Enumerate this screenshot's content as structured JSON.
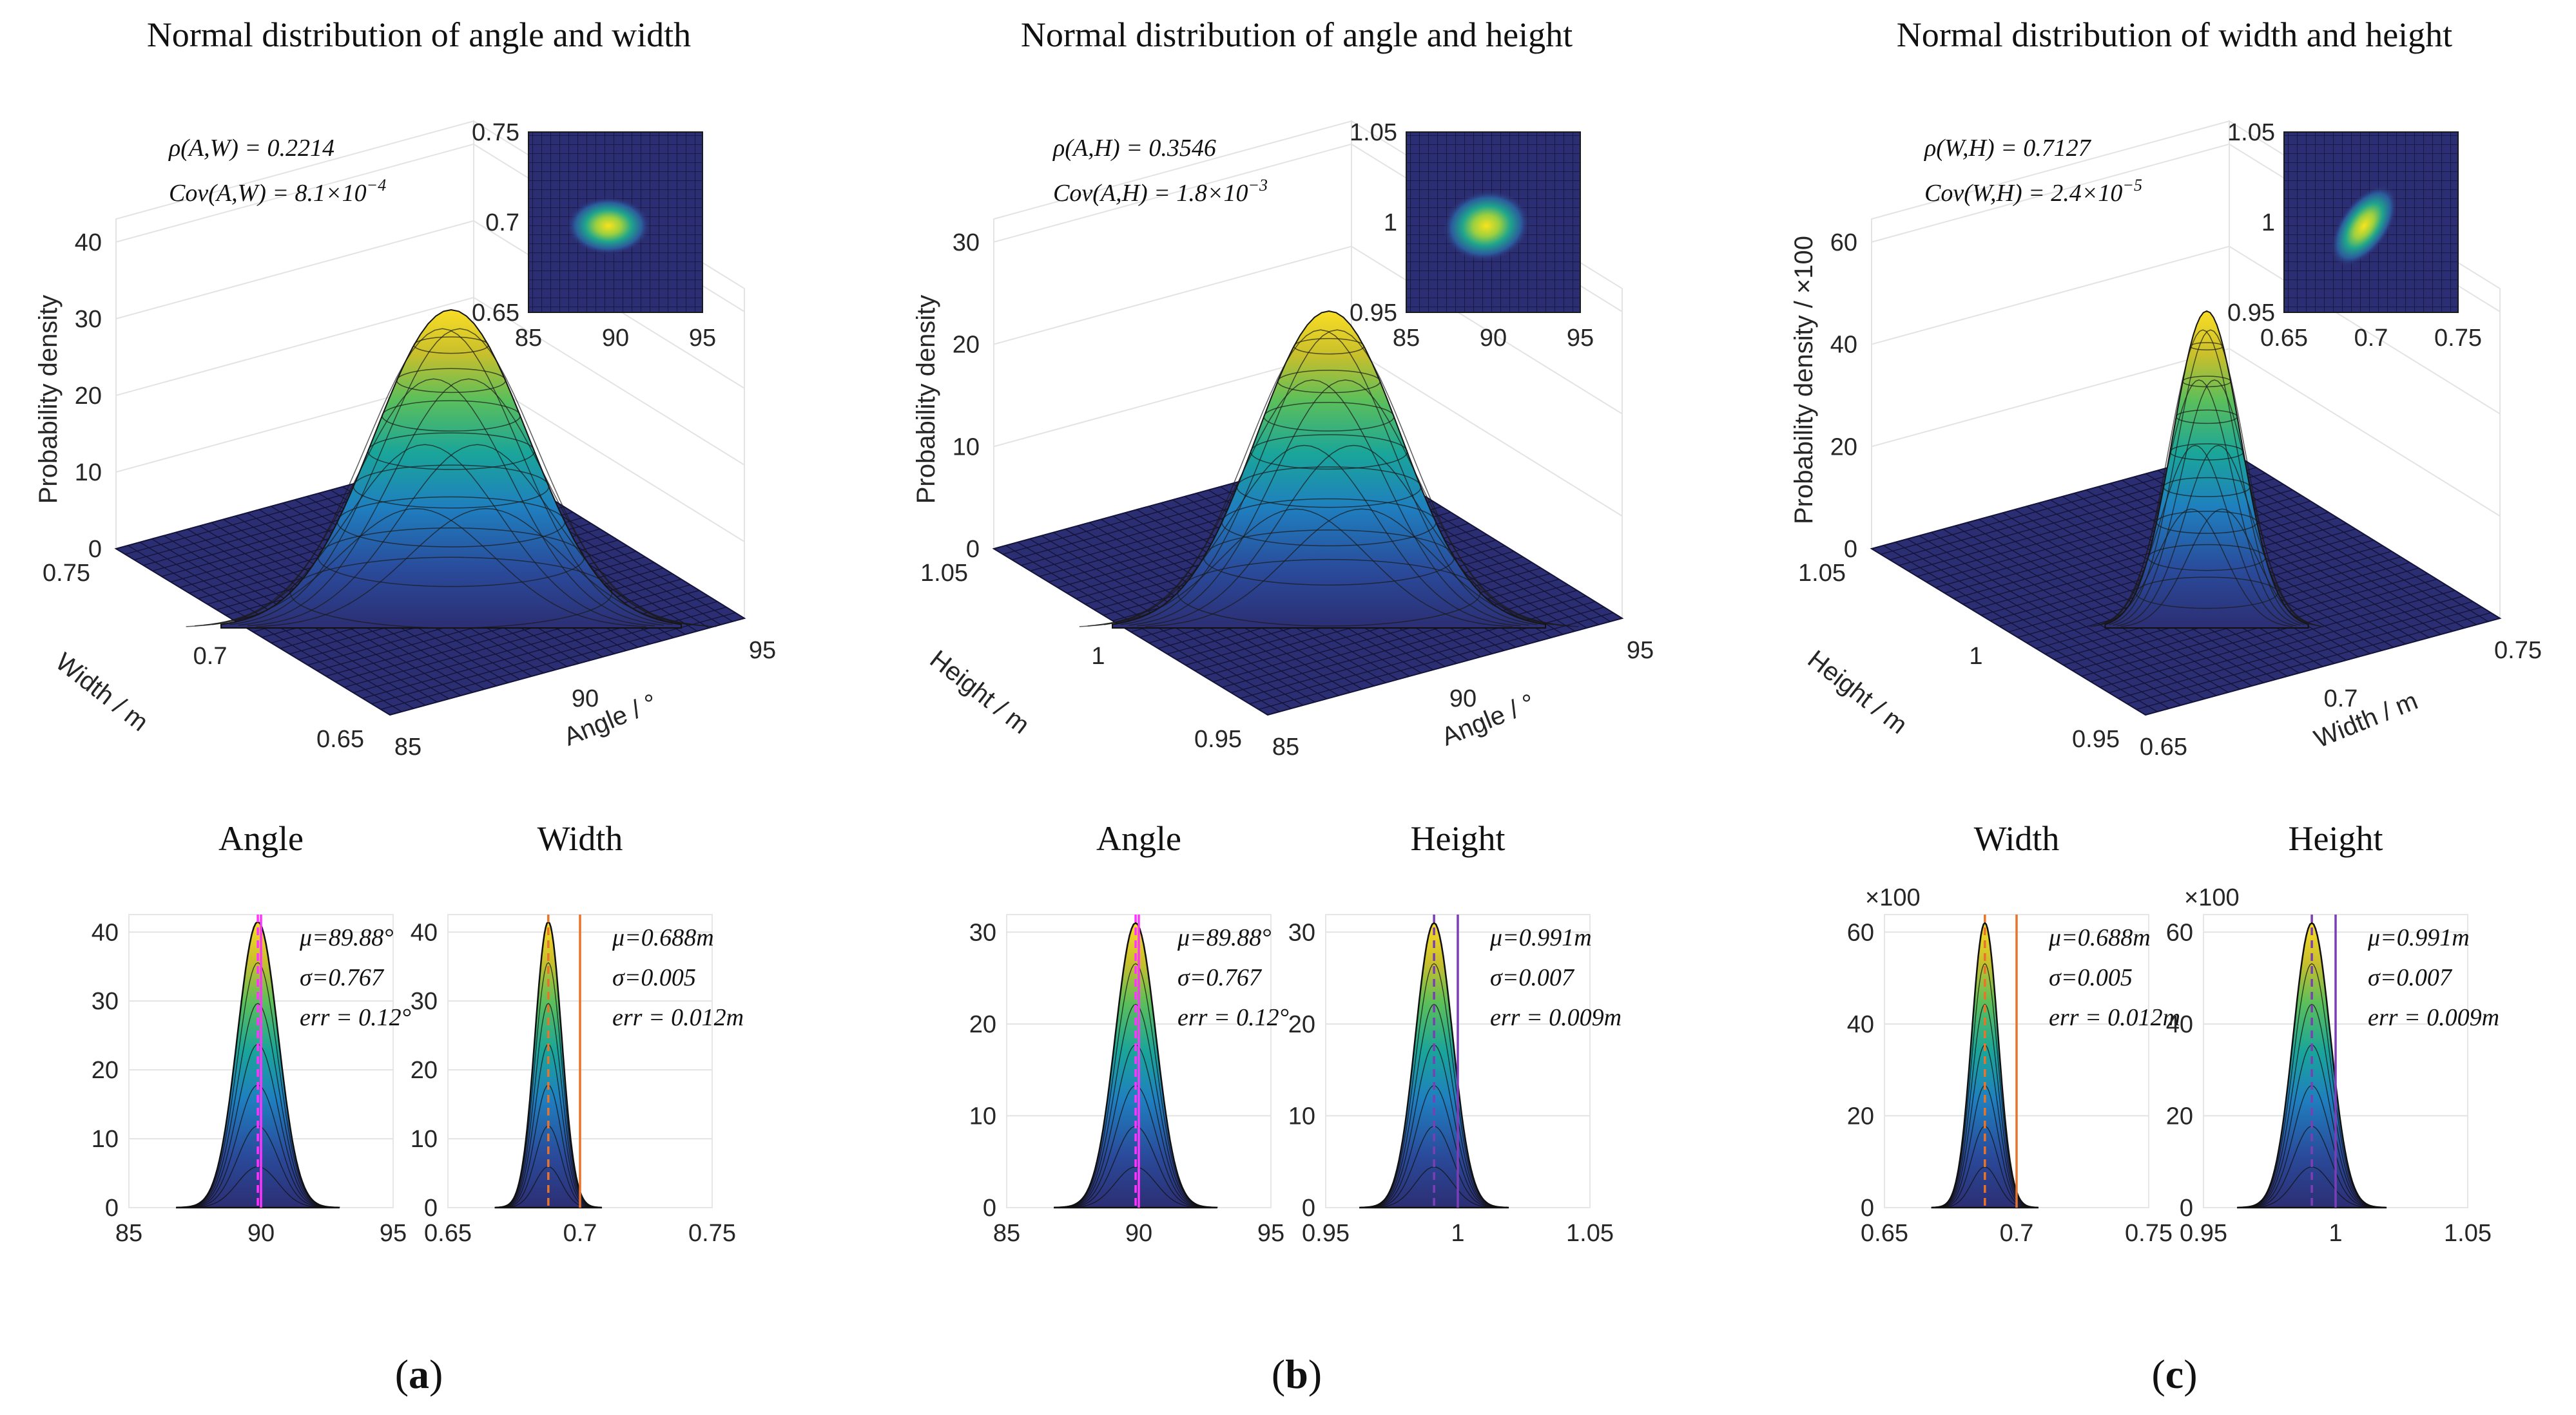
{
  "colors": {
    "floor": "#2c2e73",
    "grid": "#1a1a33",
    "mean_line": "#e600e6",
    "angle_ref_line": "#ff33ff",
    "width_ref_line": "#e8742b",
    "height_ref_line": "#7a3fb5",
    "axis": "#262626",
    "gridline": "#e3e3e3"
  },
  "panels": [
    {
      "panel_label": "a",
      "title": "Normal distribution of angle and width",
      "annotations": {
        "rho": "ρ(A,W) = 0.2214",
        "cov": "Cov(A,W) = 8.1×10",
        "cov_exp": "−4"
      },
      "surface3d": {
        "z_label": "Probability density",
        "x_label": "Angle / °",
        "y_label": "Width / m",
        "z_ticks": [
          "0",
          "10",
          "20",
          "30",
          "40"
        ],
        "x_ticks": [
          "85",
          "90",
          "95"
        ],
        "y_ticks": [
          "0.65",
          "0.7",
          "0.75"
        ]
      },
      "inset": {
        "x_ticks": [
          "85",
          "90",
          "95"
        ],
        "y_ticks": [
          "0.65",
          "0.7",
          "0.75"
        ]
      },
      "marginals": [
        {
          "title": "Angle",
          "x_ticks": [
            "85",
            "90",
            "95"
          ],
          "y_ticks": [
            "0",
            "10",
            "20",
            "30",
            "40"
          ],
          "y_scale_label": "",
          "mu": "μ=89.88°",
          "sigma": "σ=0.767",
          "err": "err = 0.12°",
          "line_color": "angle_ref_line"
        },
        {
          "title": "Width",
          "x_ticks": [
            "0.65",
            "0.7",
            "0.75"
          ],
          "y_ticks": [
            "0",
            "10",
            "20",
            "30",
            "40"
          ],
          "y_scale_label": "",
          "mu": "μ=0.688m",
          "sigma": "σ=0.005",
          "err": "err = 0.012m",
          "line_color": "width_ref_line"
        }
      ]
    },
    {
      "panel_label": "b",
      "title": "Normal distribution of angle and height",
      "annotations": {
        "rho": "ρ(A,H) = 0.3546",
        "cov": "Cov(A,H) = 1.8×10",
        "cov_exp": "−3"
      },
      "surface3d": {
        "z_label": "Probability density",
        "x_label": "Angle / °",
        "y_label": "Height / m",
        "z_ticks": [
          "0",
          "10",
          "20",
          "30"
        ],
        "x_ticks": [
          "85",
          "90",
          "95"
        ],
        "y_ticks": [
          "0.95",
          "1",
          "1.05"
        ]
      },
      "inset": {
        "x_ticks": [
          "85",
          "90",
          "95"
        ],
        "y_ticks": [
          "0.95",
          "1",
          "1.05"
        ]
      },
      "marginals": [
        {
          "title": "Angle",
          "x_ticks": [
            "85",
            "90",
            "95"
          ],
          "y_ticks": [
            "0",
            "10",
            "20",
            "30"
          ],
          "y_scale_label": "",
          "mu": "μ=89.88°",
          "sigma": "σ=0.767",
          "err": "err = 0.12°",
          "line_color": "angle_ref_line"
        },
        {
          "title": "Height",
          "x_ticks": [
            "0.95",
            "1",
            "1.05"
          ],
          "y_ticks": [
            "0",
            "10",
            "20",
            "30"
          ],
          "y_scale_label": "",
          "mu": "μ=0.991m",
          "sigma": "σ=0.007",
          "err": "err = 0.009m",
          "line_color": "height_ref_line"
        }
      ]
    },
    {
      "panel_label": "c",
      "title": "Normal distribution of width and height",
      "annotations": {
        "rho": "ρ(W,H) = 0.7127",
        "cov": "Cov(W,H) = 2.4×10",
        "cov_exp": "−5"
      },
      "surface3d": {
        "z_label": "Probability density / ×100",
        "x_label": "Width / m",
        "y_label": "Height / m",
        "z_ticks": [
          "0",
          "20",
          "40",
          "60"
        ],
        "x_ticks": [
          "0.65",
          "0.7",
          "0.75"
        ],
        "y_ticks": [
          "0.95",
          "1",
          "1.05"
        ]
      },
      "inset": {
        "x_ticks": [
          "0.65",
          "0.7",
          "0.75"
        ],
        "y_ticks": [
          "0.95",
          "1",
          "1.05"
        ]
      },
      "marginals": [
        {
          "title": "Width",
          "x_ticks": [
            "0.65",
            "0.7",
            "0.75"
          ],
          "y_ticks": [
            "0",
            "20",
            "40",
            "60"
          ],
          "y_scale_label": "×100",
          "mu": "μ=0.688m",
          "sigma": "σ=0.005",
          "err": "err = 0.012m",
          "line_color": "width_ref_line"
        },
        {
          "title": "Height",
          "x_ticks": [
            "0.95",
            "1",
            "1.05"
          ],
          "y_ticks": [
            "0",
            "20",
            "40",
            "60"
          ],
          "y_scale_label": "×100",
          "mu": "μ=0.991m",
          "sigma": "σ=0.007",
          "err": "err = 0.009m",
          "line_color": "height_ref_line"
        }
      ]
    }
  ],
  "chart_data": [
    {
      "type": "surface",
      "title": "Normal distribution of angle and width",
      "xlabel": "Angle / °",
      "ylabel": "Width / m",
      "zlabel": "Probability density",
      "xlim": [
        85,
        95
      ],
      "ylim": [
        0.65,
        0.75
      ],
      "zlim": [
        0,
        40
      ],
      "mu": [
        89.88,
        0.688
      ],
      "sigma": [
        0.767,
        0.005
      ],
      "rho": 0.2214,
      "peak": 41.5
    },
    {
      "type": "surface",
      "title": "Normal distribution of angle and height",
      "xlabel": "Angle / °",
      "ylabel": "Height / m",
      "zlabel": "Probability density",
      "xlim": [
        85,
        95
      ],
      "ylim": [
        0.95,
        1.05
      ],
      "zlim": [
        0,
        30
      ],
      "mu": [
        89.88,
        0.991
      ],
      "sigma": [
        0.767,
        0.007
      ],
      "rho": 0.3546,
      "peak": 31
    },
    {
      "type": "surface",
      "title": "Normal distribution of width and height",
      "xlabel": "Width / m",
      "ylabel": "Height / m",
      "zlabel": "Probability density / ×100",
      "xlim": [
        0.65,
        0.75
      ],
      "ylim": [
        0.95,
        1.05
      ],
      "zlim": [
        0,
        60
      ],
      "mu": [
        0.688,
        0.991
      ],
      "sigma": [
        0.005,
        0.007
      ],
      "rho": 0.7127,
      "peak": 62
    },
    {
      "type": "area",
      "title": "Angle",
      "xlim": [
        85,
        95
      ],
      "ylim": [
        0,
        40
      ],
      "mu": 89.88,
      "sigma": 0.767,
      "peak": 41.5,
      "true_value": 90
    },
    {
      "type": "area",
      "title": "Width",
      "xlim": [
        0.65,
        0.75
      ],
      "ylim": [
        0,
        40
      ],
      "mu": 0.688,
      "sigma": 0.005,
      "peak": 41.5,
      "true_value": 0.7
    },
    {
      "type": "area",
      "title": "Angle",
      "xlim": [
        85,
        95
      ],
      "ylim": [
        0,
        30
      ],
      "mu": 89.88,
      "sigma": 0.767,
      "peak": 31,
      "true_value": 90
    },
    {
      "type": "area",
      "title": "Height",
      "xlim": [
        0.95,
        1.05
      ],
      "ylim": [
        0,
        30
      ],
      "mu": 0.991,
      "sigma": 0.007,
      "peak": 31,
      "true_value": 1
    },
    {
      "type": "area",
      "title": "Width",
      "xlim": [
        0.65,
        0.75
      ],
      "ylim": [
        0,
        60
      ],
      "mu": 0.688,
      "sigma": 0.005,
      "peak": 62,
      "true_value": 0.7
    },
    {
      "type": "area",
      "title": "Height",
      "xlim": [
        0.95,
        1.05
      ],
      "ylim": [
        0,
        60
      ],
      "mu": 0.991,
      "sigma": 0.007,
      "peak": 62,
      "true_value": 1
    }
  ]
}
